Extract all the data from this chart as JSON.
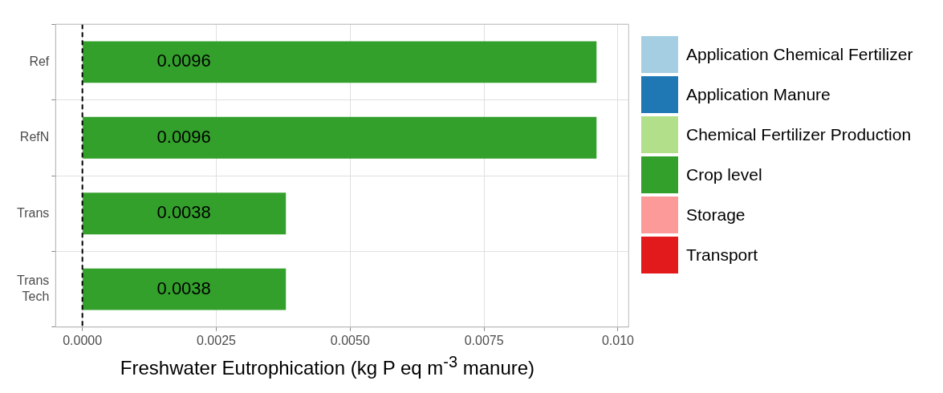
{
  "chart_data": {
    "type": "bar",
    "orientation": "horizontal",
    "stacked": true,
    "categories": [
      "Ref",
      "RefN",
      "Trans",
      "Trans\nTech"
    ],
    "series": [
      {
        "name": "Application Chemical Fertilizer",
        "color": "#a6cee3",
        "values": [
          null,
          null,
          null,
          null
        ]
      },
      {
        "name": "Application Manure",
        "color": "#1f78b4",
        "values": [
          null,
          null,
          null,
          null
        ]
      },
      {
        "name": "Chemical Fertilizer Production",
        "color": "#b2df8a",
        "values": [
          null,
          null,
          null,
          null
        ]
      },
      {
        "name": "Crop level",
        "color": "#33a02c",
        "values": [
          0.0096,
          0.0096,
          0.0038,
          0.0038
        ]
      },
      {
        "name": "Storage",
        "color": "#fb9a99",
        "values": [
          null,
          null,
          null,
          null
        ]
      },
      {
        "name": "Transport",
        "color": "#e31a1c",
        "values": [
          null,
          null,
          null,
          null
        ]
      }
    ],
    "xlim": [
      -0.0005,
      0.0102
    ],
    "xticks": [
      {
        "value": 0,
        "label": "0.0000"
      },
      {
        "value": 0.0025,
        "label": "0.0025"
      },
      {
        "value": 0.005,
        "label": "0.0050"
      },
      {
        "value": 0.0075,
        "label": "0.0075"
      },
      {
        "value": 0.01,
        "label": "0.010"
      }
    ],
    "xlabel": "Freshwater Eutrophication (kg P eq m$^{-3}$ manure)",
    "ref_lines": [
      {
        "axis": "x",
        "value": 0,
        "color": "#000000",
        "line_style": "dashed"
      }
    ],
    "data_labels": true,
    "grid": true,
    "legend": "right"
  }
}
